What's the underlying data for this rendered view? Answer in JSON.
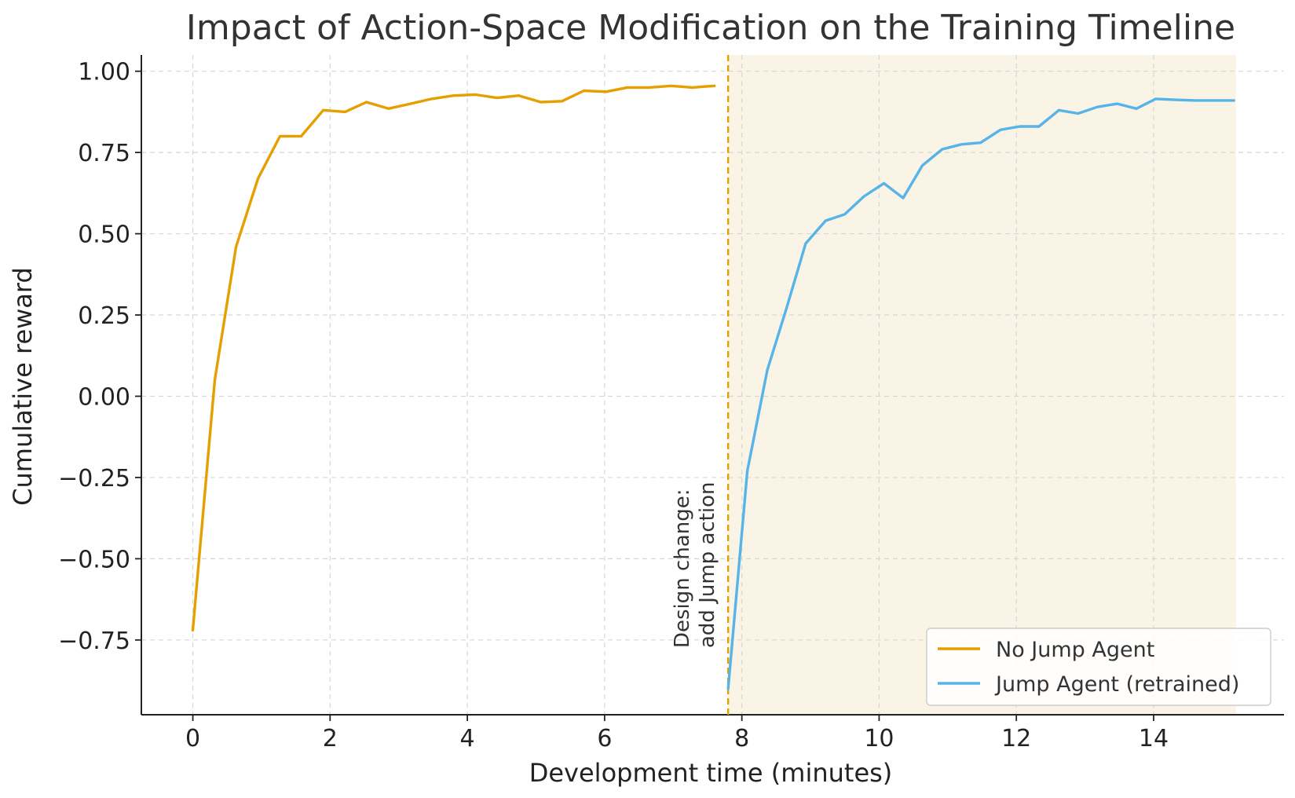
{
  "chart_data": {
    "type": "line",
    "title": "Impact of Action-Space Modification on the Training Timeline",
    "xlabel": "Development time (minutes)",
    "ylabel": "Cumulative reward",
    "xlim": [
      -0.75,
      15.9
    ],
    "ylim": [
      -0.98,
      1.05
    ],
    "xticks": [
      0,
      2,
      4,
      6,
      8,
      10,
      12,
      14
    ],
    "xtick_labels": [
      "0",
      "2",
      "4",
      "6",
      "8",
      "10",
      "12",
      "14"
    ],
    "yticks": [
      1.0,
      0.75,
      0.5,
      0.25,
      0.0,
      -0.25,
      -0.5,
      -0.75
    ],
    "ytick_labels": [
      "1.00",
      "0.75",
      "0.50",
      "0.25",
      "0.00",
      "−0.25",
      "−0.50",
      "−0.75"
    ],
    "grid": true,
    "legend_position": "bottom-right",
    "series": [
      {
        "name": "No Jump Agent",
        "color": "#E69F00",
        "x": [
          0.0,
          0.32,
          0.63,
          0.95,
          1.27,
          1.58,
          1.9,
          2.22,
          2.53,
          2.85,
          3.17,
          3.48,
          3.8,
          4.12,
          4.43,
          4.75,
          5.07,
          5.38,
          5.7,
          6.02,
          6.33,
          6.65,
          6.97,
          7.28,
          7.6
        ],
        "y": [
          -0.72,
          0.05,
          0.46,
          0.67,
          0.8,
          0.8,
          0.88,
          0.875,
          0.905,
          0.885,
          0.9,
          0.915,
          0.925,
          0.928,
          0.918,
          0.925,
          0.905,
          0.908,
          0.94,
          0.937,
          0.95,
          0.95,
          0.955,
          0.95,
          0.955
        ]
      },
      {
        "name": "Jump Agent (retrained)",
        "color": "#56B4E9",
        "x": [
          7.8,
          8.08,
          8.37,
          8.65,
          8.93,
          9.22,
          9.5,
          9.78,
          10.07,
          10.35,
          10.63,
          10.92,
          11.2,
          11.48,
          11.77,
          12.05,
          12.33,
          12.62,
          12.9,
          13.18,
          13.47,
          13.75,
          14.03,
          14.32,
          14.6,
          14.88,
          15.17
        ],
        "y": [
          -0.9,
          -0.23,
          0.08,
          0.27,
          0.47,
          0.54,
          0.56,
          0.615,
          0.655,
          0.61,
          0.71,
          0.76,
          0.775,
          0.78,
          0.82,
          0.83,
          0.83,
          0.88,
          0.87,
          0.89,
          0.9,
          0.885,
          0.915,
          0.912,
          0.91,
          0.91,
          0.91
        ]
      }
    ],
    "annotations": {
      "design_change_x": 7.8,
      "design_change_color": "#E69F00",
      "design_change_lines": [
        "Design change:",
        "add Jump action"
      ],
      "shaded_region_x": [
        7.8,
        15.2
      ],
      "shaded_region_color": "#FAF4E6"
    }
  }
}
